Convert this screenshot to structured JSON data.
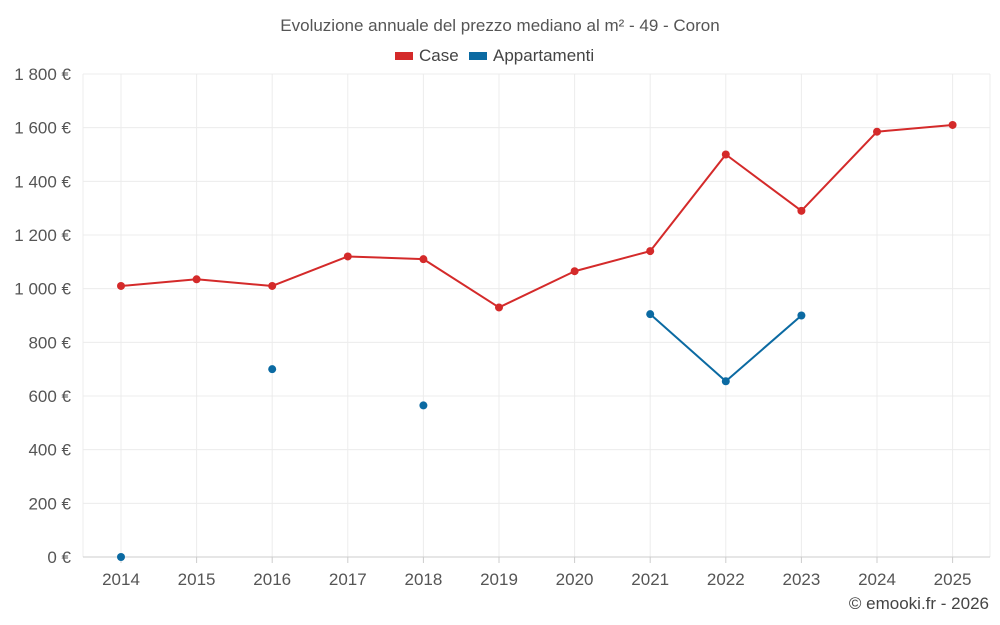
{
  "chart_data": {
    "type": "line",
    "title": "Evoluzione annuale del prezzo mediano al m² - 49 - Coron",
    "categories": [
      "2014",
      "2015",
      "2016",
      "2017",
      "2018",
      "2019",
      "2020",
      "2021",
      "2022",
      "2023",
      "2024",
      "2025"
    ],
    "ylim": [
      0,
      1800
    ],
    "y_ticks": [
      0,
      200,
      400,
      600,
      800,
      1000,
      1200,
      1400,
      1600,
      1800
    ],
    "y_tick_labels": [
      "0 €",
      "200 €",
      "400 €",
      "600 €",
      "800 €",
      "1 000 €",
      "1 200 €",
      "1 400 €",
      "1 600 €",
      "1 800 €"
    ],
    "grid": true,
    "legend_position": "top-center",
    "series": [
      {
        "name": "Case",
        "color": "#d42a2a",
        "values": [
          1010,
          1035,
          1010,
          1120,
          1110,
          930,
          1065,
          1140,
          1500,
          1290,
          1585,
          1610
        ]
      },
      {
        "name": "Appartamenti",
        "color": "#0b6aa2",
        "values": [
          0,
          null,
          700,
          null,
          565,
          null,
          null,
          905,
          655,
          900,
          null,
          null
        ]
      }
    ]
  },
  "credit": "© emooki.fr - 2026"
}
